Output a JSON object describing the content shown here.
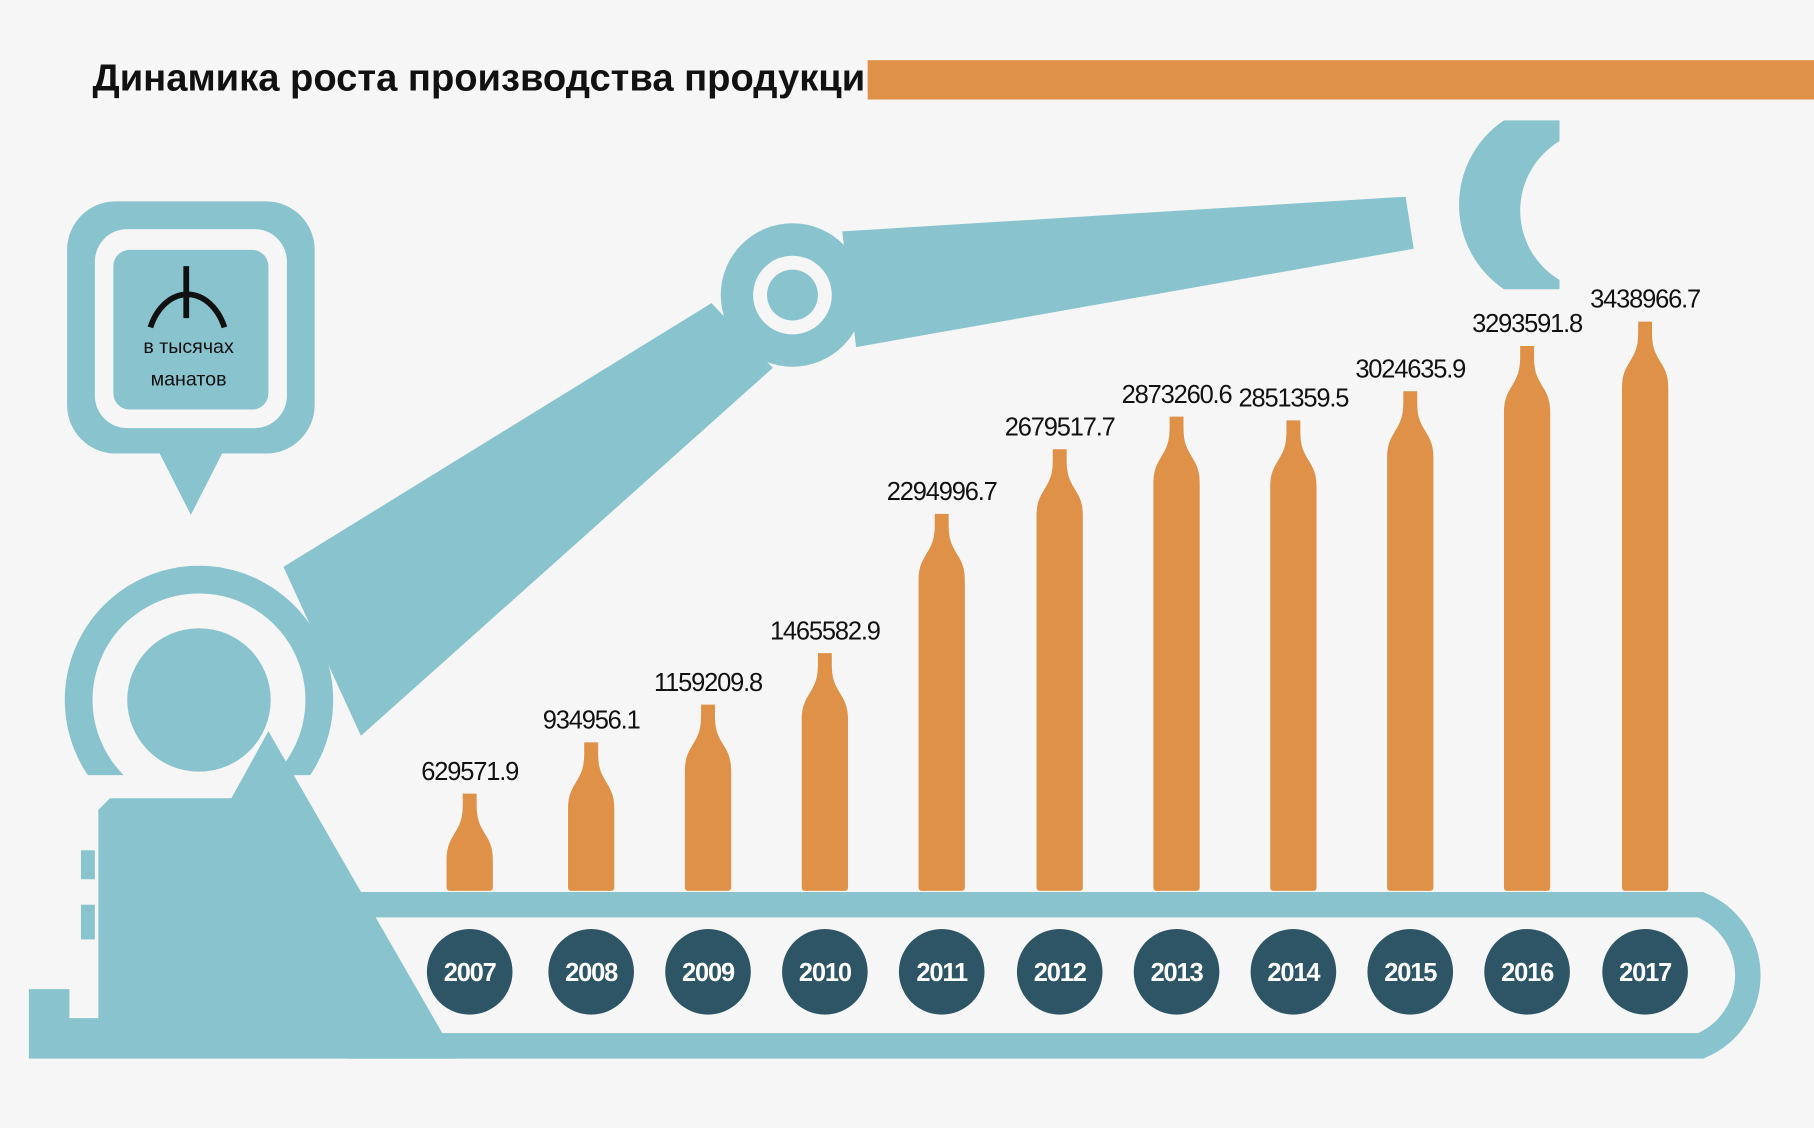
{
  "colors": {
    "background": "#f5f6f5",
    "arm": "#89c4ce",
    "bottle": "#df9147",
    "year_circle": "#2d5566",
    "accent_bar": "#df9147"
  },
  "unit_badge": {
    "icon": "manat-sign-icon",
    "line1": "в тысячах",
    "line2": "манатов"
  },
  "chart_data": {
    "type": "bar",
    "title": "Динамика роста производства продукции",
    "xlabel": "",
    "ylabel": "в тысячах манатов",
    "categories": [
      "2007",
      "2008",
      "2009",
      "2010",
      "2011",
      "2012",
      "2013",
      "2014",
      "2015",
      "2016",
      "2017"
    ],
    "values": [
      629571.9,
      934956.1,
      1159209.8,
      1465582.9,
      2294996.7,
      2679517.7,
      2873260.6,
      2851359.5,
      3024635.9,
      3293591.8,
      3438966.7
    ],
    "labels": [
      "629571.9",
      "934956.1",
      "1159209.8",
      "1465582.9",
      "2294996.7",
      "2679517.7",
      "2873260.6",
      "2851359.5",
      "3024635.9",
      "3293591.8",
      "3438966.7"
    ],
    "grid": false,
    "legend": "none"
  }
}
